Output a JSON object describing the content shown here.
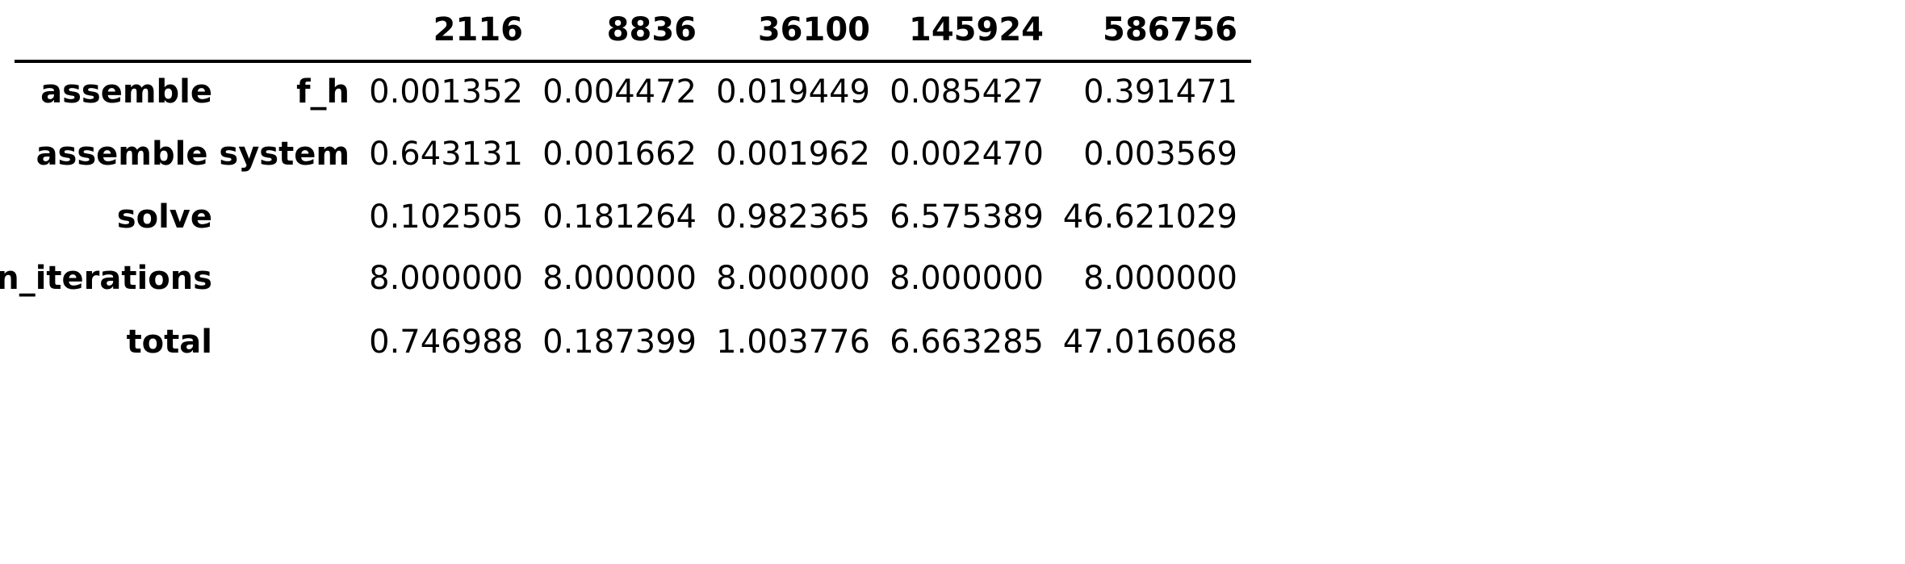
{
  "chart_data": {
    "type": "table",
    "columns": [
      "2116",
      "8836",
      "36100",
      "145924",
      "586756"
    ],
    "rows": [
      {
        "label": "assemble",
        "sublabel": "f_h",
        "values": [
          "0.001352",
          "0.004472",
          "0.019449",
          "0.085427",
          "0.391471"
        ]
      },
      {
        "label": "",
        "sublabel": "assemble system",
        "values": [
          "0.643131",
          "0.001662",
          "0.001962",
          "0.002470",
          "0.003569"
        ]
      },
      {
        "label": "solve",
        "sublabel": "",
        "values": [
          "0.102505",
          "0.181264",
          "0.982365",
          "6.575389",
          "46.621029"
        ]
      },
      {
        "label": "n_iterations",
        "sublabel": "",
        "values": [
          "8.000000",
          "8.000000",
          "8.000000",
          "8.000000",
          "8.000000"
        ]
      },
      {
        "label": "total",
        "sublabel": "",
        "values": [
          "0.746988",
          "0.187399",
          "1.003776",
          "6.663285",
          "47.016068"
        ]
      }
    ]
  }
}
